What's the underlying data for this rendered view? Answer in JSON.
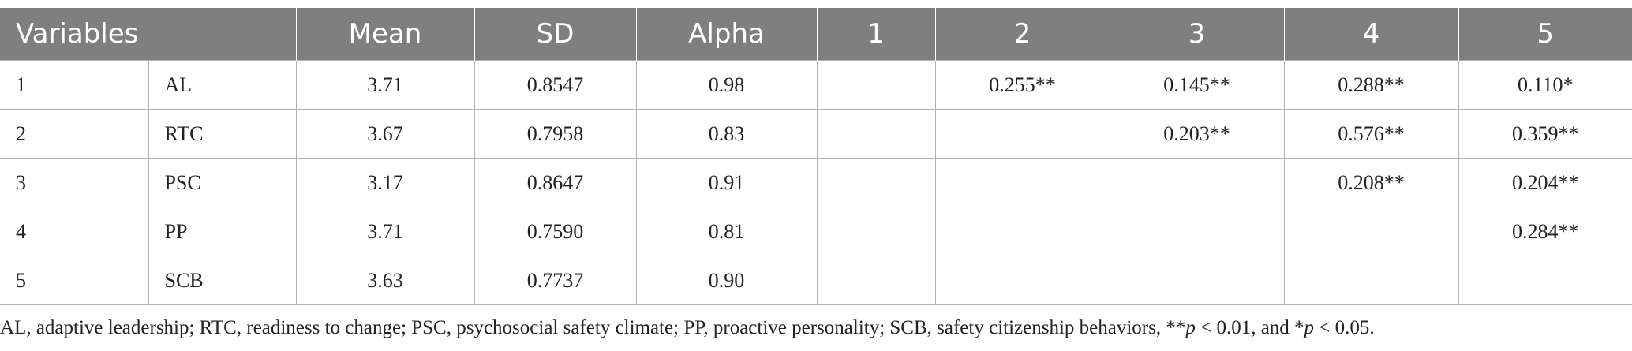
{
  "table": {
    "headers": [
      "Variables",
      "Mean",
      "SD",
      "Alpha",
      "1",
      "2",
      "3",
      "4",
      "5"
    ],
    "rows": [
      {
        "num": "1",
        "name": "AL",
        "mean": "3.71",
        "sd": "0.8547",
        "alpha": "0.98",
        "c1": "",
        "c2": "0.255**",
        "c3": "0.145**",
        "c4": "0.288**",
        "c5": "0.110*"
      },
      {
        "num": "2",
        "name": "RTC",
        "mean": "3.67",
        "sd": "0.7958",
        "alpha": "0.83",
        "c1": "",
        "c2": "",
        "c3": "0.203**",
        "c4": "0.576**",
        "c5": "0.359**"
      },
      {
        "num": "3",
        "name": "PSC",
        "mean": "3.17",
        "sd": "0.8647",
        "alpha": "0.91",
        "c1": "",
        "c2": "",
        "c3": "",
        "c4": "0.208**",
        "c5": "0.204**"
      },
      {
        "num": "4",
        "name": "PP",
        "mean": "3.71",
        "sd": "0.7590",
        "alpha": "0.81",
        "c1": "",
        "c2": "",
        "c3": "",
        "c4": "",
        "c5": "0.284**"
      },
      {
        "num": "5",
        "name": "SCB",
        "mean": "3.63",
        "sd": "0.7737",
        "alpha": "0.90",
        "c1": "",
        "c2": "",
        "c3": "",
        "c4": "",
        "c5": ""
      }
    ]
  },
  "footnote": {
    "prefix": "AL, adaptive leadership; RTC, readiness to change; PSC, psychosocial safety climate; PP, proactive personality; SCB, safety citizenship behaviors, **",
    "p1": "p",
    "mid": " < 0.01, and *",
    "p2": "p",
    "suffix": " < 0.05."
  },
  "colors": {
    "header_bg": "#7f7f7f",
    "header_text": "#ffffff",
    "grid_line": "#b3b3b3"
  }
}
